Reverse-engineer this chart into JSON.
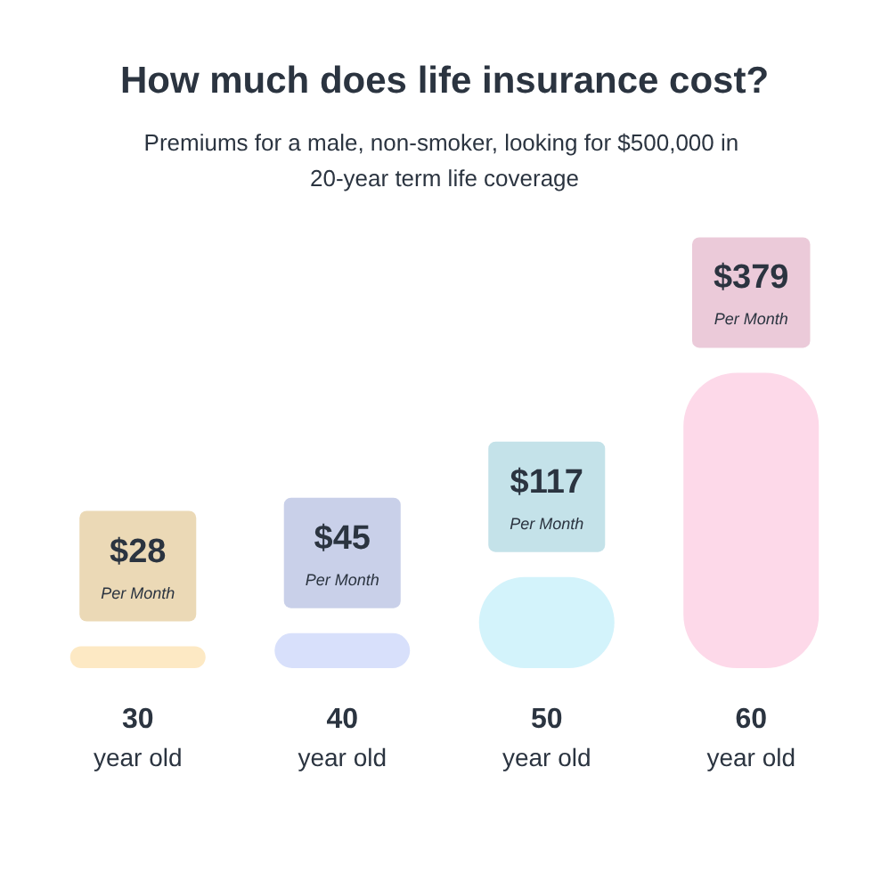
{
  "chart_data": {
    "type": "bar",
    "title": "How much does life insurance cost?",
    "subtitle": "Premiums for a male, non-smoker, looking for $500,000 in 20-year term life coverage",
    "categories": [
      "30 year old",
      "40 year old",
      "50 year old",
      "60 year old"
    ],
    "values": [
      28,
      45,
      117,
      379
    ],
    "colors": [
      "#fde9c4",
      "#d8e0fb",
      "#d3f3fb",
      "#fdd9e9"
    ],
    "value_labels": [
      "$28",
      "$45",
      "$117",
      "$379"
    ],
    "annotations": [
      "Per Month",
      "Per Month",
      "Per Month",
      "Per Month"
    ]
  }
}
